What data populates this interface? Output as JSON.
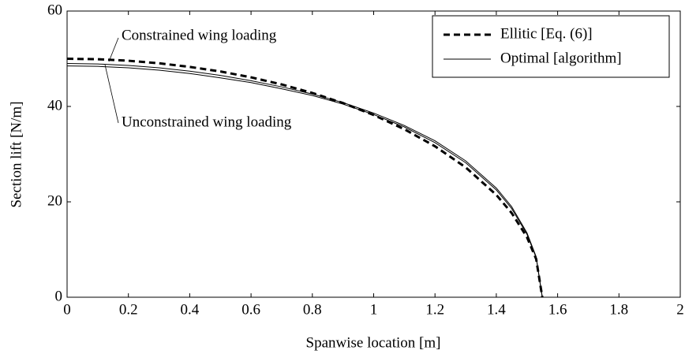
{
  "chart_data": {
    "type": "line",
    "xlabel": "Spanwise location [m]",
    "ylabel": "Section lift [N/m]",
    "x": [
      0,
      0.1,
      0.2,
      0.3,
      0.4,
      0.5,
      0.6,
      0.7,
      0.8,
      0.9,
      1.0,
      1.1,
      1.2,
      1.3,
      1.4,
      1.45,
      1.5,
      1.53,
      1.55
    ],
    "series": [
      {
        "name": "Ellitic [Eq. (6)]",
        "color": "#000000",
        "dashed": true,
        "values": [
          50,
          49.9,
          49.58,
          49.05,
          48.29,
          47.33,
          46.1,
          44.61,
          42.83,
          40.71,
          38.2,
          35.23,
          31.65,
          27.23,
          21.46,
          17.67,
          12.6,
          8.01,
          0
        ]
      },
      {
        "name": "Optimal [algorithm]",
        "color": "#000000",
        "dashed": false,
        "values": [
          49.0,
          48.9,
          48.6,
          48.1,
          47.4,
          46.5,
          45.4,
          44.1,
          42.6,
          40.8,
          38.6,
          36.0,
          32.8,
          28.6,
          22.9,
          19.0,
          13.5,
          8.5,
          0
        ]
      },
      {
        "color": "#000000",
        "dashed": false,
        "values": [
          48.5,
          48.4,
          48.1,
          47.6,
          46.9,
          46.0,
          45.0,
          43.7,
          42.3,
          40.5,
          38.3,
          35.7,
          32.4,
          28.2,
          22.5,
          18.6,
          13.2,
          8.3,
          0
        ]
      }
    ],
    "annotations": [
      "Constrained wing loading",
      "Unconstrained wing loading"
    ],
    "xlim": [
      0,
      2
    ],
    "ylim": [
      0,
      60
    ],
    "xticks": [
      0,
      0.2,
      0.4,
      0.6,
      0.8,
      1,
      1.2,
      1.4,
      1.6,
      1.8,
      2
    ],
    "yticks": [
      0,
      20,
      40,
      60
    ],
    "legend": "upper right"
  }
}
